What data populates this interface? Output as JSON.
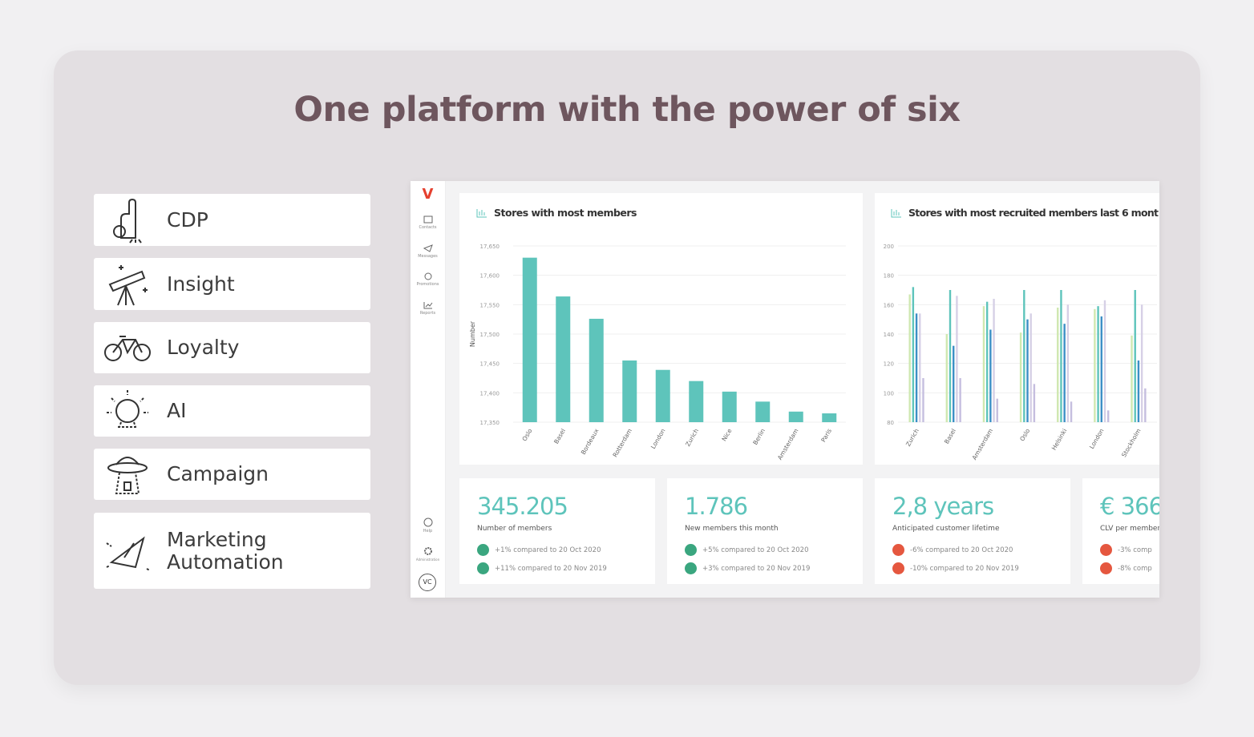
{
  "title": "One platform with the power of six",
  "features": [
    "CDP",
    "Insight",
    "Loyalty",
    "AI",
    "Campaign",
    "Marketing Automation"
  ],
  "dashboard": {
    "logo": "V",
    "nav": [
      "Contacts",
      "Messages",
      "Promotions",
      "Reports"
    ],
    "nav_bottom": [
      "Help",
      "Administration"
    ],
    "user": "VC",
    "kpis": [
      {
        "value": "345.205",
        "label": "Number of members",
        "trends": [
          "+1% compared to 20 Oct 2020",
          "+11% compared to 20 Nov 2019"
        ]
      },
      {
        "value": "1.786",
        "label": "New members this month",
        "trends": [
          "+5% compared to 20 Oct 2020",
          "+3% compared to 20 Nov 2019"
        ]
      },
      {
        "value": "2,8 years",
        "label": "Anticipated customer lifetime",
        "trends": [
          "-6% compared to 20 Oct 2020",
          "-10% compared to 20 Nov 2019"
        ]
      },
      {
        "value": "€ 366",
        "label": "CLV per member",
        "trends": [
          "-3% comp",
          "-8% comp"
        ]
      }
    ]
  },
  "chart_data": [
    {
      "type": "bar",
      "title": "Stores with most members",
      "ylabel": "Number",
      "categories": [
        "Oslo",
        "Basel",
        "Bordeaux",
        "Rotterdam",
        "London",
        "Zurich",
        "Nice",
        "Berlin",
        "Amsterdam",
        "Paris"
      ],
      "values": [
        17630,
        17564,
        17526,
        17455,
        17439,
        17420,
        17402,
        17385,
        17368,
        17365
      ],
      "color": "#5ec4bb",
      "ylim": [
        17350,
        17650
      ],
      "yticks": [
        {
          "value": 17350,
          "label": "17,350"
        },
        {
          "value": 17400,
          "label": "17,400"
        },
        {
          "value": 17450,
          "label": "17,450"
        },
        {
          "value": 17500,
          "label": "17,500"
        },
        {
          "value": 17550,
          "label": "17,550"
        },
        {
          "value": 17600,
          "label": "17,600"
        },
        {
          "value": 17650,
          "label": "17,650"
        }
      ],
      "grid": true
    },
    {
      "type": "grouped-bar",
      "title": "Stores with most recruited members last 6 mont",
      "categories": [
        "Zurich",
        "Basel",
        "Amsterdam",
        "Oslo",
        "Helsinki",
        "London",
        "Stockholm"
      ],
      "series": [
        {
          "color": "#cfe8b0",
          "values": [
            167,
            140,
            159,
            141,
            158,
            157,
            139
          ]
        },
        {
          "color": "#5ec4bb",
          "values": [
            172,
            170,
            162,
            170,
            170,
            159,
            170
          ]
        },
        {
          "color": "#3b8fc6",
          "values": [
            154,
            132,
            143,
            150,
            147,
            152,
            122
          ]
        },
        {
          "color": "#d6d0e6",
          "values": [
            154,
            166,
            164,
            154,
            160,
            163,
            160
          ]
        },
        {
          "color": "#c5bedf",
          "values": [
            110,
            110,
            96,
            106,
            94,
            88,
            103
          ]
        }
      ],
      "ylim": [
        80,
        200
      ],
      "yticks": [
        80,
        100,
        120,
        140,
        160,
        180,
        200
      ],
      "grid": true
    }
  ]
}
